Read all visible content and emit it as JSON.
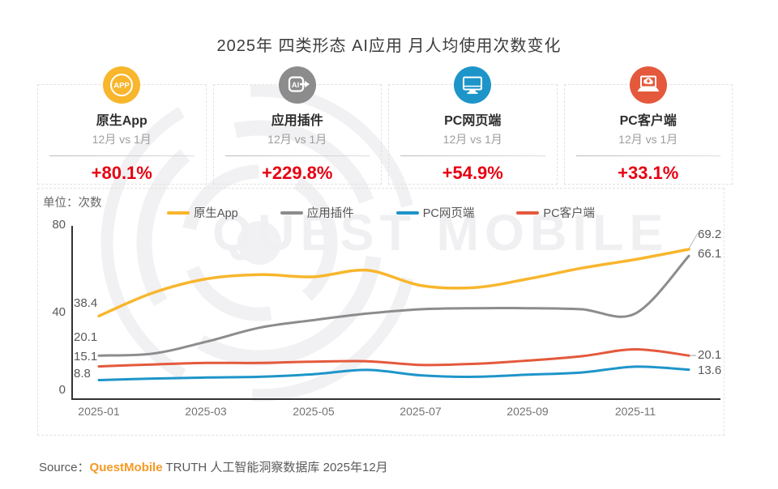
{
  "title": "2025年 四类形态 AI应用 月人均使用次数变化",
  "accent_red": "#e60012",
  "cards": [
    {
      "name": "原生App",
      "compare": "12月 vs 1月",
      "change": "+80.1%",
      "color": "#f8b62d",
      "icon": "app-badge"
    },
    {
      "name": "应用插件",
      "compare": "12月 vs 1月",
      "change": "+229.8%",
      "color": "#8c8c8c",
      "icon": "ai-plugin"
    },
    {
      "name": "PC网页端",
      "compare": "12月 vs 1月",
      "change": "+54.9%",
      "color": "#1e95c9",
      "icon": "monitor"
    },
    {
      "name": "PC客户端",
      "compare": "12月 vs 1月",
      "change": "+33.1%",
      "color": "#e4593c",
      "icon": "laptop-download"
    }
  ],
  "chart_data": {
    "type": "line",
    "unit_label": "单位：次数",
    "x": [
      "2025-01",
      "2025-02",
      "2025-03",
      "2025-04",
      "2025-05",
      "2025-06",
      "2025-07",
      "2025-08",
      "2025-09",
      "2025-10",
      "2025-11",
      "2025-12"
    ],
    "x_tick_labels": [
      "2025-01",
      "2025-03",
      "2025-05",
      "2025-07",
      "2025-09",
      "2025-11"
    ],
    "ylim": [
      0,
      80
    ],
    "yticks": [
      80,
      40,
      0
    ],
    "ytick_labels": [
      "80",
      "40",
      "0"
    ],
    "grid": false,
    "legend_position": "top",
    "series": [
      {
        "name": "原生App",
        "color": "#f8b62d",
        "values": [
          38.4,
          49.0,
          55.5,
          57.5,
          56.5,
          59.5,
          52.5,
          51.5,
          55.5,
          60.5,
          64.5,
          69.2
        ],
        "start_label": "38.4",
        "end_label": "69.2",
        "start_dy": -24,
        "end_dy": -27
      },
      {
        "name": "应用插件",
        "color": "#8c8c8c",
        "values": [
          20.1,
          21.0,
          26.5,
          33.0,
          36.5,
          39.5,
          41.5,
          42.0,
          42.0,
          41.5,
          39.5,
          66.1
        ],
        "start_label": "20.1",
        "end_label": "66.1",
        "start_dy": -31,
        "end_dy": -11
      },
      {
        "name": "PC网页端",
        "color": "#1e95c9",
        "values": [
          8.8,
          9.5,
          10.0,
          10.3,
          11.5,
          13.5,
          11.0,
          10.3,
          11.3,
          12.3,
          15.0,
          13.6
        ],
        "start_label": "8.8",
        "end_label": "13.6",
        "start_dy": -16,
        "end_dy": -8
      },
      {
        "name": "PC客户端",
        "color": "#e4593c",
        "values": [
          15.1,
          16.0,
          16.7,
          16.7,
          17.3,
          17.5,
          15.8,
          16.3,
          17.8,
          19.8,
          23.0,
          20.1
        ],
        "start_label": "15.1",
        "end_label": "20.1",
        "start_dy": -21,
        "end_dy": -9
      }
    ]
  },
  "watermark": {
    "text": "QUEST MOBILE"
  },
  "source": {
    "prefix": "Source：",
    "brand": "QuestMobile",
    "rest": " TRUTH 人工智能洞察数据库 2025年12月",
    "brand_color": "#f59a23"
  }
}
